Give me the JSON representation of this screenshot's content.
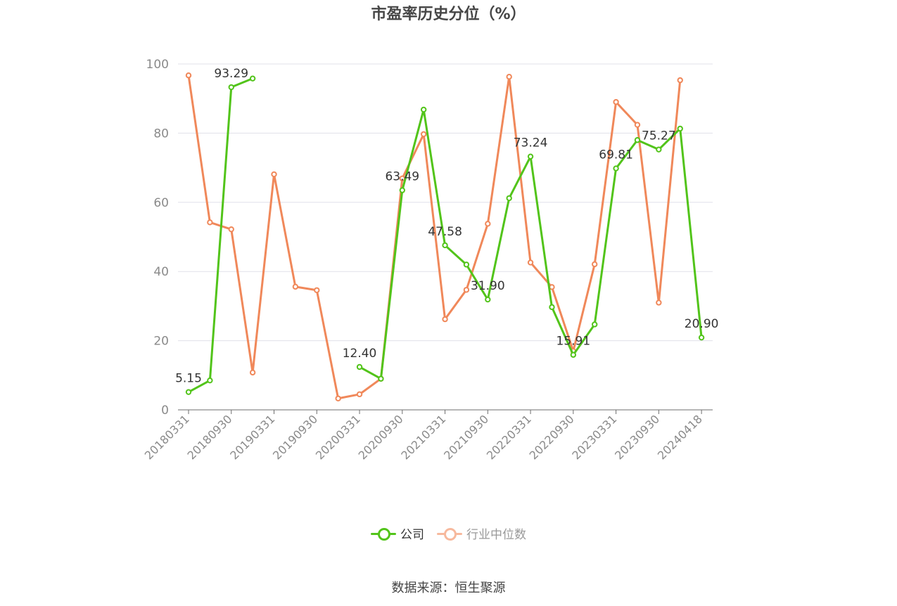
{
  "title": "市盈率历史分位（%）",
  "source": "数据来源：恒生聚源",
  "legend": {
    "company": "公司",
    "industry": "行业中位数"
  },
  "colors": {
    "company": "#52c41a",
    "industry": "#f0885a",
    "industry_legend": "#f7b99d",
    "grid": "#e0e0ea",
    "axis": "#6e6e6e",
    "tick_label": "#8a8a8a"
  },
  "chart_data": {
    "type": "line",
    "title": "市盈率历史分位（%）",
    "ylim": [
      0,
      100
    ],
    "yticks": [
      0,
      20,
      40,
      60,
      80,
      100
    ],
    "grid": "horizontal",
    "legend_position": "bottom",
    "x": [
      "20180331",
      "20180630",
      "20180930",
      "20181231",
      "20190331",
      "20190630",
      "20190930",
      "20191231",
      "20200331",
      "20200630",
      "20200930",
      "20201231",
      "20210331",
      "20210630",
      "20210930",
      "20211231",
      "20220331",
      "20220630",
      "20220930",
      "20221231",
      "20230331",
      "20230630",
      "20230930",
      "20231231",
      "20240418"
    ],
    "x_tick_labels": [
      "20180331",
      "20180930",
      "20190331",
      "20190930",
      "20200331",
      "20200930",
      "20210331",
      "20210930",
      "20220331",
      "20220930",
      "20230331",
      "20230930",
      "20240418"
    ],
    "series": [
      {
        "name": "公司",
        "values": [
          5.15,
          8.5,
          93.29,
          95.8,
          null,
          null,
          null,
          null,
          12.4,
          9.0,
          63.49,
          86.8,
          47.58,
          42.0,
          31.9,
          61.2,
          73.24,
          29.7,
          15.91,
          24.7,
          69.81,
          78.0,
          75.27,
          81.3,
          20.9
        ],
        "labels": {
          "0": "5.15",
          "2": "93.29",
          "8": "12.40",
          "10": "63.49",
          "12": "47.58",
          "14": "31.90",
          "16": "73.24",
          "18": "15.91",
          "20": "69.81",
          "22": "75.27",
          "24": "20.90"
        }
      },
      {
        "name": "行业中位数",
        "values": [
          96.7,
          54.2,
          52.2,
          10.8,
          68.1,
          35.6,
          34.6,
          3.3,
          4.5,
          9.0,
          66.9,
          79.7,
          26.2,
          34.7,
          53.8,
          96.3,
          42.6,
          35.5,
          17.0,
          42.1,
          89.0,
          82.4,
          31.0,
          95.3,
          null
        ]
      }
    ]
  }
}
